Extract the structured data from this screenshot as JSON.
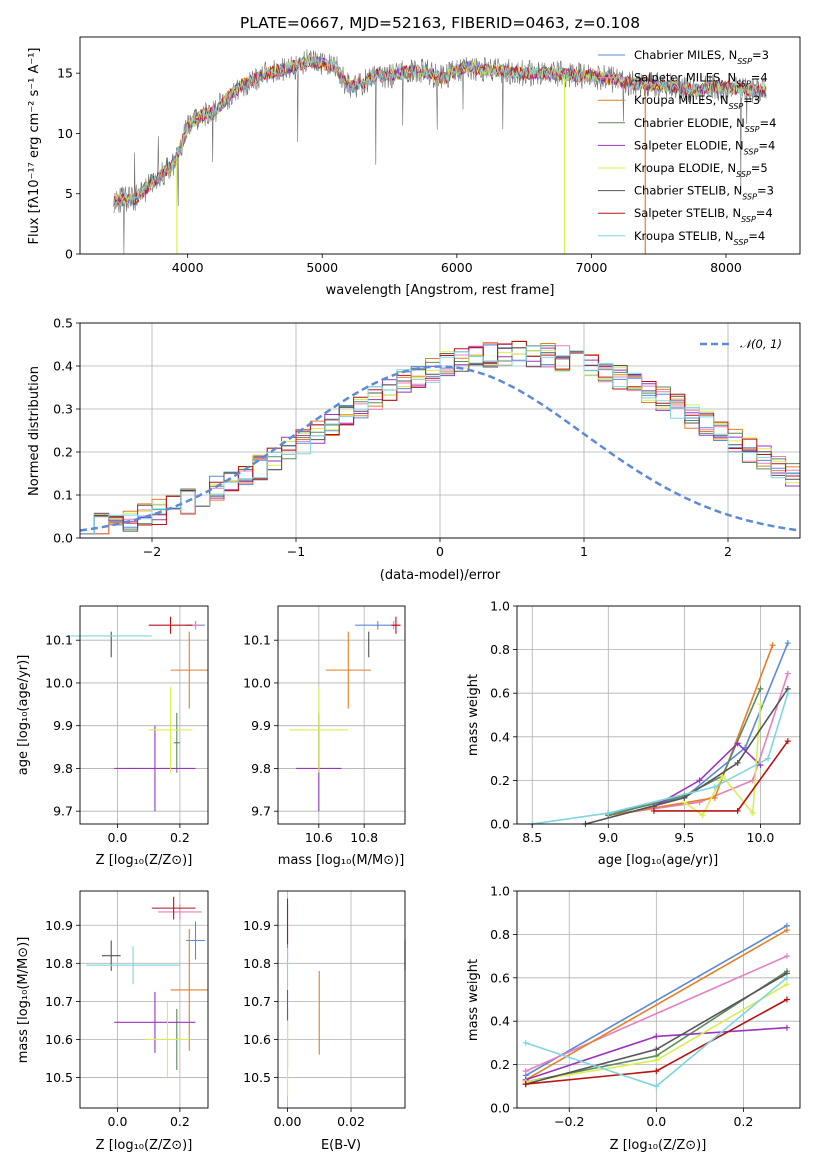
{
  "colors": {
    "Chabrier MILES": "#5b8ad8",
    "Salpeter MILES": "#e77fbf",
    "Kroupa MILES": "#e57f27",
    "Chabrier ELODIE": "#5a8a5e",
    "Salpeter ELODIE": "#9a35c0",
    "Kroupa ELODIE": "#d8ef52",
    "Chabrier STELIB": "#555555",
    "Salpeter STELIB": "#b81414",
    "Kroupa STELIB": "#7fd5de",
    "normal_curve": "#5b8ad8"
  },
  "chart_data": [
    {
      "id": "spectrum",
      "type": "line",
      "title": "PLATE=0667, MJD=52163, FIBERID=0463, z=0.108",
      "xlabel": "wavelength [Angstrom, rest frame]",
      "ylabel": "Flux [fλ10⁻¹⁷ erg cm⁻² s⁻¹ A⁻¹]",
      "xlim": [
        3200,
        8550
      ],
      "ylim": [
        0,
        18
      ],
      "xticks": [
        "4000",
        "5000",
        "6000",
        "7000",
        "8000"
      ],
      "yticks": [
        "0",
        "5",
        "10",
        "15"
      ],
      "grid": false,
      "legend_position": "right",
      "legend": [
        {
          "prefix": "Chabrier MILES, N",
          "sub": "SSP",
          "suffix": "=3"
        },
        {
          "prefix": "Salpeter MILES, N",
          "sub": "SSP",
          "suffix": "=4"
        },
        {
          "prefix": "Kroupa MILES, N",
          "sub": "SSP",
          "suffix": "=3"
        },
        {
          "prefix": "Chabrier ELODIE, N",
          "sub": "SSP",
          "suffix": "=4"
        },
        {
          "prefix": "Salpeter ELODIE, N",
          "sub": "SSP",
          "suffix": "=4"
        },
        {
          "prefix": "Kroupa ELODIE, N",
          "sub": "SSP",
          "suffix": "=5"
        },
        {
          "prefix": "Chabrier STELIB, N",
          "sub": "SSP",
          "suffix": "=3"
        },
        {
          "prefix": "Salpeter STELIB, N",
          "sub": "SSP",
          "suffix": "=4"
        },
        {
          "prefix": "Kroupa STELIB, N",
          "sub": "SSP",
          "suffix": "=4"
        }
      ],
      "continuum": {
        "x": [
          3450,
          3600,
          3700,
          3800,
          3900,
          4000,
          4100,
          4200,
          4300,
          4400,
          4500,
          4600,
          4700,
          4800,
          4900,
          5000,
          5100,
          5200,
          5300,
          5400,
          5500,
          5600,
          5700,
          5800,
          5900,
          6000,
          6100,
          6200,
          6300,
          6400,
          6500,
          6600,
          6700,
          6800,
          6900,
          7000,
          7100,
          7200,
          7300,
          7400,
          7500,
          7600,
          7700,
          7800,
          7900,
          8000,
          8100,
          8200,
          8300
        ],
        "y": [
          4.5,
          4.5,
          5.5,
          6.5,
          7.5,
          10.5,
          11.5,
          11.8,
          13.0,
          14.0,
          14.5,
          15.0,
          15.3,
          15.6,
          16.0,
          15.8,
          15.5,
          13.8,
          14.2,
          14.8,
          14.8,
          15.0,
          15.2,
          15.0,
          14.5,
          15.3,
          15.5,
          15.3,
          15.2,
          15.1,
          15.0,
          15.0,
          15.0,
          14.9,
          14.8,
          14.8,
          14.6,
          14.4,
          14.1,
          14.1,
          14.0,
          13.9,
          13.7,
          13.6,
          13.8,
          13.8,
          13.7,
          13.6,
          13.5
        ]
      }
    },
    {
      "id": "residuals",
      "type": "bar",
      "xlabel": "(data-model)/error",
      "ylabel": "Normed distribution",
      "xlim": [
        -2.5,
        2.5
      ],
      "ylim": [
        0,
        0.5
      ],
      "xticks": [
        "−2",
        "−1",
        "0",
        "1",
        "2"
      ],
      "yticks": [
        "0.0",
        "0.1",
        "0.2",
        "0.3",
        "0.4",
        "0.5"
      ],
      "grid": true,
      "legend_label": "𝒩(0, 1)",
      "bin_width": 0.1,
      "bins_start": -2.5,
      "base": [
        0.025,
        0.028,
        0.035,
        0.042,
        0.05,
        0.06,
        0.072,
        0.085,
        0.1,
        0.115,
        0.13,
        0.148,
        0.165,
        0.185,
        0.205,
        0.225,
        0.245,
        0.265,
        0.285,
        0.305,
        0.325,
        0.345,
        0.362,
        0.378,
        0.392,
        0.405,
        0.412,
        0.42,
        0.425,
        0.428,
        0.43,
        0.428,
        0.425,
        0.418,
        0.41,
        0.398,
        0.385,
        0.372,
        0.358,
        0.342,
        0.325,
        0.305,
        0.285,
        0.265,
        0.245,
        0.225,
        0.205,
        0.185,
        0.165,
        0.148,
        0.13,
        0.115,
        0.1,
        0.085,
        0.072,
        0.06,
        0.05,
        0.042,
        0.035,
        0.028,
        0.025
      ],
      "normal_curve": {
        "mean": 0,
        "sd": 1
      }
    },
    {
      "id": "age-vs-Z",
      "type": "scatter",
      "xlabel": "Z [log₁₀(Z/Z⊙)]",
      "ylabel": "age  [log₁₀(age/yr)]",
      "xlim": [
        -0.12,
        0.29
      ],
      "ylim": [
        9.67,
        10.18
      ],
      "xticks": [
        "0.0",
        "0.2"
      ],
      "yticks": [
        "9.7",
        "9.8",
        "9.9",
        "10.0",
        "10.1"
      ],
      "grid": true,
      "points": [
        {
          "model": "Chabrier MILES",
          "x": 0.25,
          "y": 10.135,
          "xerr": 0.03,
          "yerr": 0.01
        },
        {
          "model": "Salpeter MILES",
          "x": 0.25,
          "y": 10.135,
          "xerr": 0.02,
          "yerr": 0.01
        },
        {
          "model": "Kroupa MILES",
          "x": 0.23,
          "y": 10.03,
          "xerr": 0.06,
          "yerr": 0.09
        },
        {
          "model": "Chabrier ELODIE",
          "x": 0.19,
          "y": 9.86,
          "xerr": 0.01,
          "yerr": 0.07
        },
        {
          "model": "Salpeter ELODIE",
          "x": 0.12,
          "y": 9.8,
          "xerr": 0.13,
          "yerr": 0.1
        },
        {
          "model": "Kroupa ELODIE",
          "x": 0.17,
          "y": 9.89,
          "xerr": 0.07,
          "yerr": 0.1
        },
        {
          "model": "Chabrier STELIB",
          "x": -0.02,
          "y": 10.09,
          "xerr": 0.0,
          "yerr": 0.03
        },
        {
          "model": "Salpeter STELIB",
          "x": 0.17,
          "y": 10.135,
          "xerr": 0.07,
          "yerr": 0.02
        },
        {
          "model": "Kroupa STELIB",
          "x": -0.02,
          "y": 10.11,
          "xerr": 0.13,
          "yerr": 0.0
        }
      ]
    },
    {
      "id": "age-vs-mass",
      "type": "scatter",
      "xlabel": "mass [log₁₀(M/M⊙)]",
      "ylabel": "",
      "xlim": [
        10.42,
        10.98
      ],
      "ylim": [
        9.67,
        10.18
      ],
      "xticks": [
        "10.6",
        "10.8"
      ],
      "yticks": [
        "9.7",
        "9.8",
        "9.9",
        "10.0",
        "10.1"
      ],
      "grid": true,
      "points": [
        {
          "model": "Chabrier MILES",
          "x": 10.86,
          "y": 10.135,
          "xerr": 0.1,
          "yerr": 0.01
        },
        {
          "model": "Salpeter MILES",
          "x": 10.93,
          "y": 10.135,
          "xerr": 0.02,
          "yerr": 0.01
        },
        {
          "model": "Kroupa MILES",
          "x": 10.73,
          "y": 10.03,
          "xerr": 0.1,
          "yerr": 0.09
        },
        {
          "model": "Chabrier ELODIE",
          "x": 10.6,
          "y": 9.86,
          "xerr": 0.0,
          "yerr": 0.07
        },
        {
          "model": "Salpeter ELODIE",
          "x": 10.6,
          "y": 9.8,
          "xerr": 0.1,
          "yerr": 0.1
        },
        {
          "model": "Kroupa ELODIE",
          "x": 10.6,
          "y": 9.89,
          "xerr": 0.13,
          "yerr": 0.1
        },
        {
          "model": "Chabrier STELIB",
          "x": 10.82,
          "y": 10.09,
          "xerr": 0.0,
          "yerr": 0.03
        },
        {
          "model": "Salpeter STELIB",
          "x": 10.94,
          "y": 10.135,
          "xerr": 0.02,
          "yerr": 0.02
        },
        {
          "model": "Kroupa STELIB",
          "x": 10.8,
          "y": 10.11,
          "xerr": 0.0,
          "yerr": 0.0
        }
      ]
    },
    {
      "id": "weight-vs-age",
      "type": "line",
      "xlabel": "age  [log₁₀(age/yr)]",
      "ylabel": "mass weight",
      "xlim": [
        8.4,
        10.26
      ],
      "ylim": [
        0,
        1
      ],
      "xticks": [
        "8.5",
        "9.0",
        "9.5",
        "10.0"
      ],
      "yticks": [
        "0.0",
        "0.2",
        "0.4",
        "0.6",
        "0.8",
        "1.0"
      ],
      "grid": true,
      "series": [
        {
          "model": "Chabrier MILES",
          "x": [
            9.0,
            9.5,
            9.9,
            10.18
          ],
          "y": [
            0.05,
            0.12,
            0.35,
            0.83
          ]
        },
        {
          "model": "Salpeter MILES",
          "x": [
            9.0,
            9.6,
            9.95,
            10.18
          ],
          "y": [
            0.04,
            0.1,
            0.2,
            0.69
          ]
        },
        {
          "model": "Kroupa MILES",
          "x": [
            9.0,
            9.7,
            10.08
          ],
          "y": [
            0.04,
            0.12,
            0.82
          ]
        },
        {
          "model": "Chabrier ELODIE",
          "x": [
            9.0,
            9.5,
            9.75,
            10.0
          ],
          "y": [
            0.04,
            0.13,
            0.22,
            0.62
          ]
        },
        {
          "model": "Salpeter ELODIE",
          "x": [
            9.3,
            9.6,
            9.85,
            10.0
          ],
          "y": [
            0.08,
            0.2,
            0.37,
            0.27
          ]
        },
        {
          "model": "Kroupa ELODIE",
          "x": [
            9.5,
            9.62,
            9.75,
            9.95,
            10.0
          ],
          "y": [
            0.1,
            0.04,
            0.22,
            0.05,
            0.55
          ]
        },
        {
          "model": "Chabrier STELIB",
          "x": [
            8.85,
            9.5,
            9.85,
            10.18
          ],
          "y": [
            0.0,
            0.12,
            0.28,
            0.62
          ]
        },
        {
          "model": "Salpeter STELIB",
          "x": [
            9.3,
            9.85,
            10.18
          ],
          "y": [
            0.06,
            0.06,
            0.38
          ]
        },
        {
          "model": "Kroupa STELIB",
          "x": [
            8.5,
            9.0,
            9.7,
            10.05,
            10.18
          ],
          "y": [
            0.0,
            0.05,
            0.17,
            0.3,
            0.6
          ]
        }
      ]
    },
    {
      "id": "mass-vs-Z",
      "type": "scatter",
      "xlabel": "Z [log₁₀(Z/Z⊙)]",
      "ylabel": "mass [log₁₀(M/M⊙)]",
      "xlim": [
        -0.12,
        0.29
      ],
      "ylim": [
        10.42,
        10.99
      ],
      "xticks": [
        "0.0",
        "0.2"
      ],
      "yticks": [
        "10.5",
        "10.6",
        "10.7",
        "10.8",
        "10.9"
      ],
      "grid": true,
      "points": [
        {
          "model": "Chabrier MILES",
          "x": 0.25,
          "y": 10.86,
          "xerr": 0.03,
          "yerr": 0.05
        },
        {
          "model": "Salpeter MILES",
          "x": 0.2,
          "y": 10.935,
          "xerr": 0.07,
          "yerr": 0.02
        },
        {
          "model": "Kroupa MILES",
          "x": 0.23,
          "y": 10.73,
          "xerr": 0.06,
          "yerr": 0.16
        },
        {
          "model": "Chabrier ELODIE",
          "x": 0.19,
          "y": 10.6,
          "xerr": 0.01,
          "yerr": 0.08
        },
        {
          "model": "Salpeter ELODIE",
          "x": 0.12,
          "y": 10.645,
          "xerr": 0.13,
          "yerr": 0.08
        },
        {
          "model": "Kroupa ELODIE",
          "x": 0.16,
          "y": 10.6,
          "xerr": 0.07,
          "yerr": 0.1
        },
        {
          "model": "Chabrier STELIB",
          "x": -0.02,
          "y": 10.82,
          "xerr": 0.03,
          "yerr": 0.04
        },
        {
          "model": "Salpeter STELIB",
          "x": 0.18,
          "y": 10.945,
          "xerr": 0.07,
          "yerr": 0.03
        },
        {
          "model": "Kroupa STELIB",
          "x": 0.05,
          "y": 10.795,
          "xerr": 0.15,
          "yerr": 0.05
        }
      ]
    },
    {
      "id": "mass-vs-EBV",
      "type": "scatter",
      "xlabel": "E(B-V)",
      "ylabel": "",
      "xlim": [
        -0.003,
        0.037
      ],
      "ylim": [
        10.42,
        10.99
      ],
      "xticks": [
        "0.00",
        "0.02"
      ],
      "yticks": [
        "10.5",
        "10.6",
        "10.7",
        "10.8",
        "10.9"
      ],
      "grid": true,
      "points": [
        {
          "model": "Chabrier MILES",
          "x": 0.0,
          "y": 10.86,
          "xerr": 0.0,
          "yerr": 0.05
        },
        {
          "model": "Salpeter MILES",
          "x": 0.0,
          "y": 10.935,
          "xerr": 0.0,
          "yerr": 0.02
        },
        {
          "model": "Kroupa MILES",
          "x": 0.01,
          "y": 10.67,
          "xerr": 0.0,
          "yerr": 0.11
        },
        {
          "model": "Chabrier ELODIE",
          "x": 0.0,
          "y": 10.6,
          "xerr": 0.0,
          "yerr": 0.08
        },
        {
          "model": "Salpeter ELODIE",
          "x": 0.0,
          "y": 10.69,
          "xerr": 0.0,
          "yerr": 0.04
        },
        {
          "model": "Kroupa ELODIE",
          "x": 0.0,
          "y": 10.55,
          "xerr": 0.0,
          "yerr": 0.1
        },
        {
          "model": "Chabrier STELIB",
          "x": 0.037,
          "y": 10.82,
          "xerr": 0.0,
          "yerr": 0.04
        },
        {
          "model": "Salpeter STELIB",
          "x": 0.0,
          "y": 10.91,
          "xerr": 0.0,
          "yerr": 0.06
        },
        {
          "model": "Kroupa STELIB",
          "x": 0.0,
          "y": 10.79,
          "xerr": 0.0,
          "yerr": 0.05
        }
      ]
    },
    {
      "id": "weight-vs-Z",
      "type": "line",
      "xlabel": "Z [log₁₀(Z/Z⊙)]",
      "ylabel": "mass weight",
      "xlim": [
        -0.32,
        0.33
      ],
      "ylim": [
        0,
        1
      ],
      "xticks": [
        "−0.2",
        "0.0",
        "0.2"
      ],
      "yticks": [
        "0.0",
        "0.2",
        "0.4",
        "0.6",
        "0.8",
        "1.0"
      ],
      "grid": true,
      "series": [
        {
          "model": "Chabrier MILES",
          "x": [
            -0.3,
            0.3
          ],
          "y": [
            0.15,
            0.84
          ]
        },
        {
          "model": "Salpeter MILES",
          "x": [
            -0.3,
            0.3
          ],
          "y": [
            0.17,
            0.7
          ]
        },
        {
          "model": "Kroupa MILES",
          "x": [
            -0.3,
            0.3
          ],
          "y": [
            0.13,
            0.82
          ]
        },
        {
          "model": "Chabrier ELODIE",
          "x": [
            -0.3,
            0.0,
            0.3
          ],
          "y": [
            0.12,
            0.24,
            0.63
          ]
        },
        {
          "model": "Salpeter ELODIE",
          "x": [
            -0.3,
            0.0,
            0.3
          ],
          "y": [
            0.13,
            0.33,
            0.37
          ]
        },
        {
          "model": "Kroupa ELODIE",
          "x": [
            -0.3,
            0.0,
            0.3
          ],
          "y": [
            0.12,
            0.22,
            0.57
          ]
        },
        {
          "model": "Chabrier STELIB",
          "x": [
            -0.3,
            0.0,
            0.3
          ],
          "y": [
            0.11,
            0.27,
            0.62
          ]
        },
        {
          "model": "Salpeter STELIB",
          "x": [
            -0.3,
            0.0,
            0.3
          ],
          "y": [
            0.11,
            0.17,
            0.5
          ]
        },
        {
          "model": "Kroupa STELIB",
          "x": [
            -0.3,
            0.0,
            0.3
          ],
          "y": [
            0.3,
            0.1,
            0.6
          ]
        }
      ]
    }
  ]
}
